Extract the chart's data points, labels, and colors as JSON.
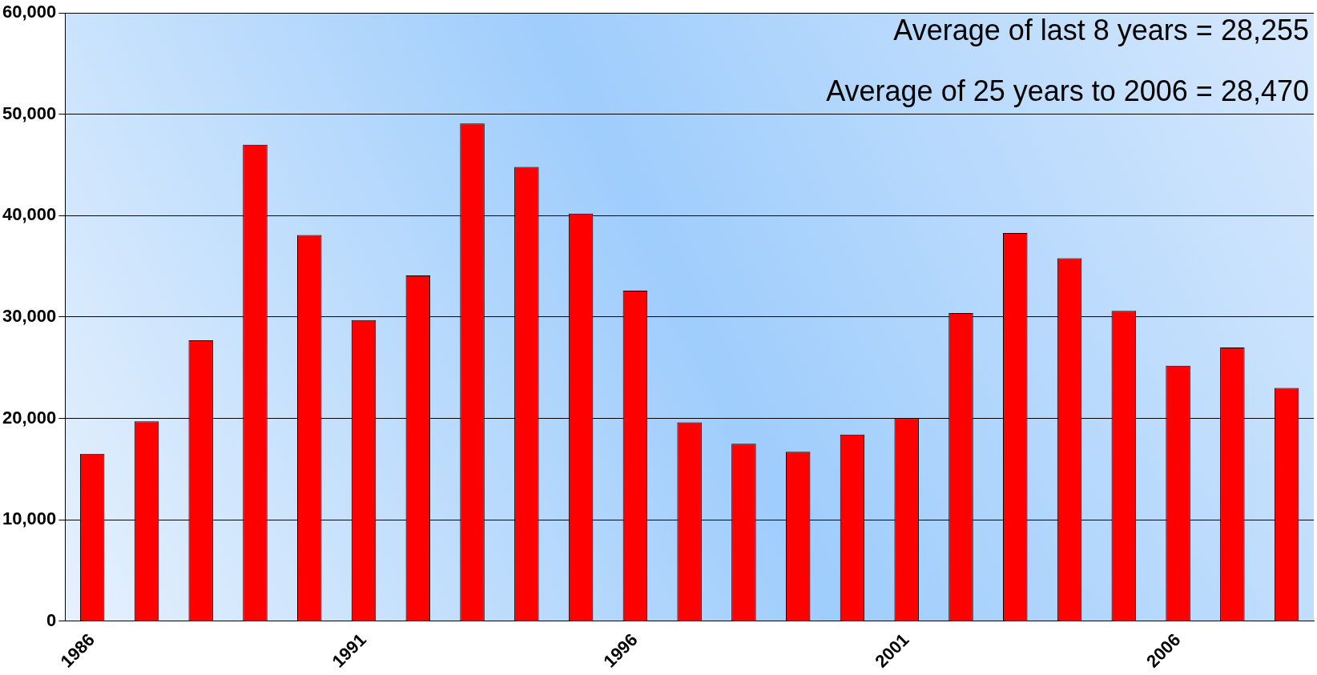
{
  "chart_data": {
    "type": "bar",
    "categories": [
      "1986",
      null,
      null,
      null,
      null,
      "1991",
      null,
      null,
      null,
      null,
      "1996",
      null,
      null,
      null,
      null,
      "2001",
      null,
      null,
      null,
      null,
      "2006",
      null,
      null
    ],
    "values": [
      16500,
      19700,
      27700,
      47000,
      38100,
      29700,
      34100,
      49100,
      44800,
      40200,
      32600,
      19600,
      17500,
      16700,
      18400,
      20000,
      30400,
      38300,
      35800,
      30600,
      25200,
      27000,
      23000
    ],
    "color": "#ff0000",
    "ylim": [
      0,
      60000
    ],
    "yticks": [
      {
        "value": 0,
        "label": "0"
      },
      {
        "value": 10000,
        "label": "10,000"
      },
      {
        "value": 20000,
        "label": "20,000"
      },
      {
        "value": 30000,
        "label": "30,000"
      },
      {
        "value": 40000,
        "label": "40,000"
      },
      {
        "value": 50000,
        "label": "50,000"
      },
      {
        "value": 60000,
        "label": "60,000"
      }
    ],
    "grid": "y",
    "legend": false,
    "annotations": [
      "Average of last 8 years = 28,255",
      "Average of 25 years to 2006 = 28,470"
    ]
  }
}
